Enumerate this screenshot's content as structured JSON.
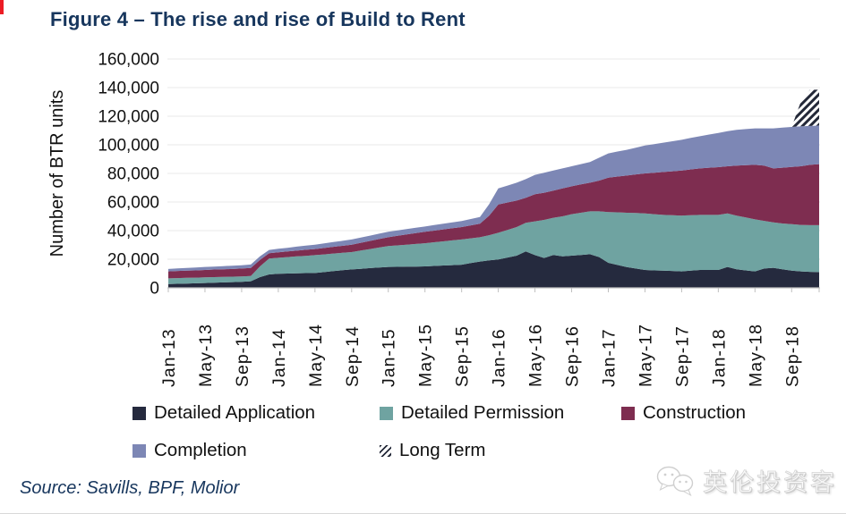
{
  "page": {
    "title": "Figure 4 – The rise and rise of Build to Rent",
    "source": "Source: Savills, BPF, Molior",
    "watermark": "英伦投资客",
    "accent_red": "#ec1c24",
    "title_color": "#17365d"
  },
  "chart_data": {
    "type": "area",
    "stacked": true,
    "title": "Figure 4 – The rise and rise of Build to Rent",
    "xlabel": "",
    "ylabel": "Number of BTR units",
    "ylim": [
      0,
      160000
    ],
    "ytick_step": 20000,
    "ytick_labels": [
      "0",
      "20,000",
      "40,000",
      "60,000",
      "80,000",
      "100,000",
      "120,000",
      "140,000",
      "160,000"
    ],
    "x_start": "Jan-13",
    "x_end": "Dec-18",
    "x_frequency": "monthly",
    "n_points": 72,
    "xtick_every_months": 4,
    "xtick_labels": [
      "Jan-13",
      "May-13",
      "Sep-13",
      "Jan-14",
      "May-14",
      "Sep-14",
      "Jan-15",
      "May-15",
      "Sep-15",
      "Jan-16",
      "May-16",
      "Sep-16",
      "Jan-17",
      "May-17",
      "Sep-17",
      "Jan-18",
      "May-18",
      "Sep-18"
    ],
    "grid": "horizontal",
    "legend_position": "bottom",
    "series": [
      {
        "name": "Detailed Application",
        "color": "#252a3e",
        "values": [
          2600,
          2800,
          3000,
          3200,
          3400,
          3600,
          3800,
          4000,
          4200,
          4600,
          7500,
          9400,
          9800,
          10000,
          10100,
          10300,
          10400,
          11000,
          11700,
          12300,
          12900,
          13300,
          13800,
          14200,
          14600,
          14700,
          14800,
          14900,
          15000,
          15300,
          15600,
          15900,
          16200,
          17300,
          18400,
          19200,
          19800,
          21200,
          22500,
          25500,
          22900,
          20900,
          23000,
          22000,
          22500,
          23000,
          23500,
          21500,
          17500,
          16000,
          14500,
          13500,
          12500,
          12200,
          12000,
          11800,
          11500,
          12000,
          12500,
          12500,
          12500,
          14600,
          13000,
          12200,
          11500,
          13500,
          14000,
          13000,
          12000,
          11500,
          11200,
          11000
        ]
      },
      {
        "name": "Detailed Permission",
        "color": "#6fa3a1",
        "values": [
          4000,
          4000,
          4000,
          3900,
          3900,
          3900,
          3800,
          3800,
          3800,
          3700,
          7500,
          11100,
          11200,
          11500,
          11900,
          12100,
          12500,
          12400,
          12300,
          12200,
          12100,
          12800,
          13300,
          14000,
          14600,
          15000,
          15400,
          15800,
          16200,
          16600,
          16900,
          17300,
          17600,
          17300,
          17000,
          17600,
          18700,
          19300,
          20000,
          20000,
          23600,
          26600,
          26000,
          28000,
          29000,
          29500,
          30000,
          32000,
          35500,
          36800,
          38000,
          38800,
          39500,
          39300,
          39000,
          39000,
          39000,
          38800,
          38500,
          38500,
          38500,
          37400,
          37500,
          37000,
          36400,
          33300,
          31800,
          32000,
          32500,
          32500,
          32600,
          32800
        ]
      },
      {
        "name": "Construction",
        "color": "#7e2d50",
        "values": [
          4900,
          5000,
          5000,
          5100,
          5200,
          5300,
          5400,
          5400,
          5500,
          5600,
          4500,
          3700,
          3900,
          4000,
          4000,
          4200,
          4200,
          4500,
          4700,
          4900,
          5200,
          5400,
          5700,
          5900,
          6200,
          6700,
          7100,
          7600,
          8000,
          8100,
          8400,
          8500,
          8700,
          9100,
          9400,
          13700,
          19800,
          19200,
          18500,
          17500,
          19000,
          19000,
          19000,
          19500,
          19500,
          19800,
          20000,
          21500,
          24000,
          25000,
          26000,
          27000,
          28000,
          29000,
          30000,
          30700,
          31500,
          32000,
          32500,
          33000,
          33400,
          33000,
          35000,
          36600,
          38100,
          38700,
          37700,
          39000,
          40000,
          41000,
          42200,
          42700
        ]
      },
      {
        "name": "Completion",
        "color": "#7d87b5",
        "values": [
          1700,
          1800,
          1900,
          2000,
          2100,
          2100,
          2200,
          2300,
          2300,
          2400,
          2500,
          2300,
          2400,
          2500,
          2800,
          2900,
          3100,
          3200,
          3300,
          3500,
          3600,
          3700,
          3700,
          3800,
          3800,
          3700,
          3800,
          3700,
          3700,
          3900,
          3900,
          4100,
          4200,
          4400,
          4700,
          8000,
          11200,
          11800,
          12500,
          13000,
          13500,
          14000,
          14000,
          14000,
          14000,
          14200,
          14500,
          16000,
          17000,
          17500,
          18000,
          18700,
          19500,
          20000,
          20500,
          21000,
          21500,
          22000,
          22500,
          23200,
          23900,
          24500,
          25000,
          25200,
          25500,
          26000,
          28000,
          28000,
          28000,
          28000,
          27200,
          27000
        ]
      },
      {
        "name": "Long Term",
        "color": "#232838",
        "hatch": true,
        "values": [
          0,
          0,
          0,
          0,
          0,
          0,
          0,
          0,
          0,
          0,
          0,
          0,
          0,
          0,
          0,
          0,
          0,
          0,
          0,
          0,
          0,
          0,
          0,
          0,
          0,
          0,
          0,
          0,
          0,
          0,
          0,
          0,
          0,
          0,
          0,
          0,
          0,
          0,
          0,
          0,
          0,
          0,
          0,
          0,
          0,
          0,
          0,
          0,
          0,
          0,
          0,
          0,
          0,
          0,
          0,
          0,
          0,
          0,
          0,
          0,
          0,
          0,
          0,
          0,
          0,
          0,
          0,
          0,
          0,
          17000,
          25300,
          25000
        ]
      }
    ]
  }
}
